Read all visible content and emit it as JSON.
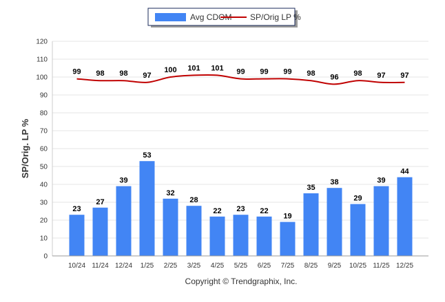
{
  "chart_data": {
    "type": "bar",
    "title": "",
    "xlabel": "",
    "ylabel": "SP/Orig. LP %",
    "ylim": [
      0,
      120
    ],
    "yticks": [
      0,
      10,
      20,
      30,
      40,
      50,
      60,
      70,
      80,
      90,
      100,
      110,
      120
    ],
    "grid": true,
    "legend_position": "top-center",
    "categories": [
      "10/24",
      "11/24",
      "12/24",
      "1/25",
      "2/25",
      "3/25",
      "4/25",
      "5/25",
      "6/25",
      "7/25",
      "8/25",
      "9/25",
      "10/25",
      "11/25",
      "12/25"
    ],
    "series": [
      {
        "name": "Avg CDOM",
        "type": "bar",
        "color": "#4285f4",
        "values": [
          23,
          27,
          39,
          53,
          32,
          28,
          22,
          23,
          22,
          19,
          35,
          38,
          29,
          39,
          44
        ]
      },
      {
        "name": "SP/Orig LP %",
        "type": "line",
        "color": "#c00000",
        "values": [
          99,
          98,
          98,
          97,
          100,
          101,
          101,
          99,
          99,
          99,
          98,
          96,
          98,
          97,
          97
        ]
      }
    ],
    "credit": "Copyright © Trendgraphix, Inc."
  }
}
